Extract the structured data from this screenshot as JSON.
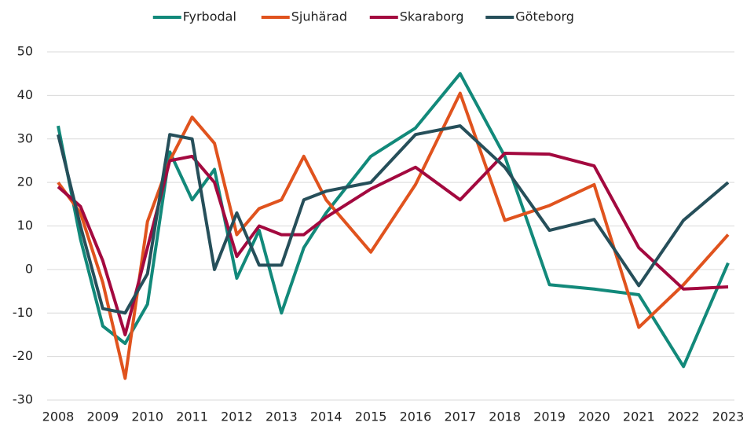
{
  "chart_data": {
    "type": "line",
    "x": [
      2008,
      2008.5,
      2009,
      2009.5,
      2010,
      2010.5,
      2011,
      2011.5,
      2012,
      2012.5,
      2013,
      2013.5,
      2014,
      2015,
      2016,
      2017,
      2018,
      2019,
      2020,
      2021,
      2022,
      2023
    ],
    "series": [
      {
        "name": "Fyrbodal",
        "color": "#12897a",
        "values": [
          33,
          7,
          -13,
          -17,
          -8,
          27,
          16,
          23,
          -2,
          9,
          -10,
          5,
          13,
          26,
          32.5,
          45,
          26,
          -3.5,
          -4.5,
          -5.8,
          -22.3,
          1.5
        ]
      },
      {
        "name": "Sjuhärad",
        "color": "#e0531e",
        "values": [
          20,
          13,
          -3,
          -25,
          11,
          25,
          35,
          29,
          8,
          14,
          16,
          26,
          16,
          4,
          19.5,
          40.5,
          11.3,
          14.7,
          19.5,
          -13.3,
          -3.5,
          8
        ]
      },
      {
        "name": "Skaraborg",
        "color": "#a3093f",
        "values": [
          19,
          14.5,
          2,
          -15,
          5,
          25,
          26,
          20,
          3,
          10,
          8,
          8,
          12,
          18.5,
          23.5,
          16,
          26.7,
          26.5,
          23.8,
          5,
          -4.5,
          -4
        ]
      },
      {
        "name": "Göteborg",
        "color": "#264f5a",
        "values": [
          31,
          10,
          -9,
          -10,
          -1,
          31,
          30,
          0,
          13,
          1,
          1,
          16,
          18,
          20,
          31,
          33,
          23.5,
          9,
          11.5,
          -3.7,
          11.3,
          20
        ]
      }
    ],
    "xlim": [
      2008,
      2023
    ],
    "xticks": [
      2008,
      2009,
      2010,
      2011,
      2012,
      2013,
      2014,
      2015,
      2016,
      2017,
      2018,
      2019,
      2020,
      2021,
      2022,
      2023
    ],
    "ylim": [
      -30,
      50
    ],
    "yticks": [
      -30,
      -20,
      -10,
      0,
      10,
      20,
      30,
      40,
      50
    ],
    "grid": true,
    "legend": "top"
  }
}
